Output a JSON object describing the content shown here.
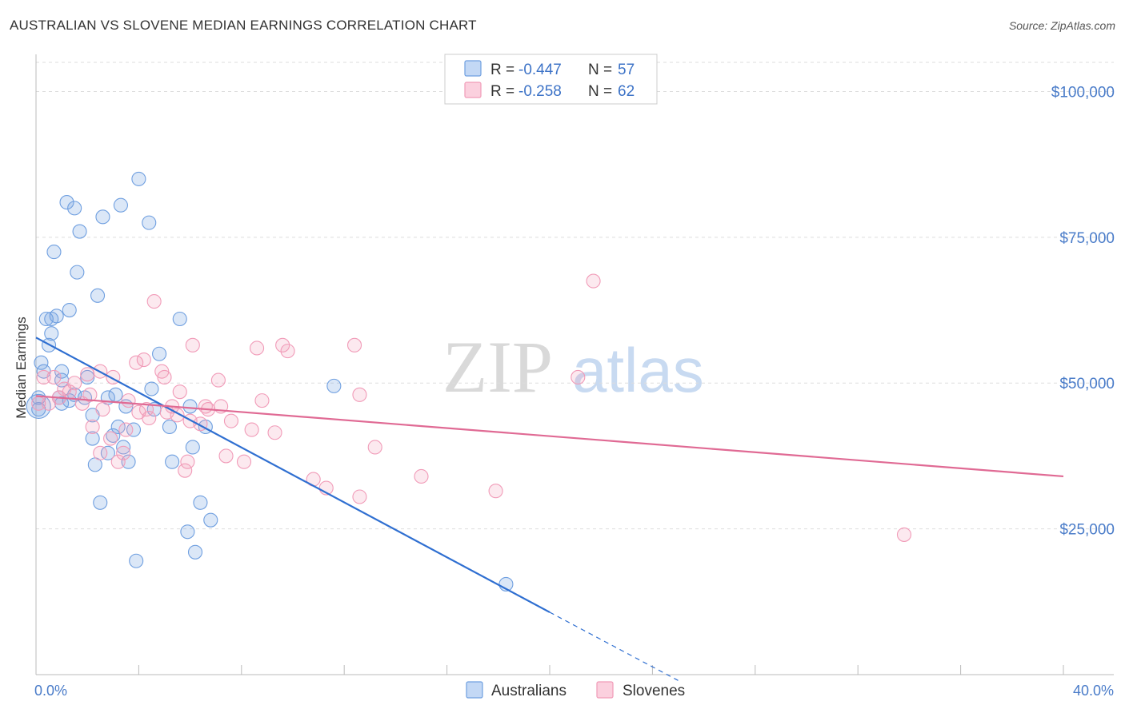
{
  "chart_data": {
    "type": "scatter",
    "title": "AUSTRALIAN VS SLOVENE MEDIAN EARNINGS CORRELATION CHART",
    "source": "Source: ZipAtlas.com",
    "ylabel": "Median Earnings",
    "xlabel": "",
    "xlim": [
      0,
      40
    ],
    "ylim": [
      0,
      105000
    ],
    "y_ticks": [
      25000,
      50000,
      75000,
      100000
    ],
    "y_tick_labels": [
      "$25,000",
      "$50,000",
      "$75,000",
      "$100,000"
    ],
    "x_tick_labels": [
      "0.0%",
      "40.0%"
    ],
    "watermark": {
      "zip": "ZIP",
      "atlas": "atlas"
    },
    "legend": [
      {
        "r_label": "R =",
        "r_value": "-0.447",
        "n_label": "N =",
        "n_value": "57"
      },
      {
        "r_label": "R =",
        "r_value": "-0.258",
        "n_label": "N =",
        "n_value": "62"
      }
    ],
    "series": [
      {
        "name": "Australians",
        "color": "#6f9fe0",
        "line_color": "#2f6fd1",
        "trend": {
          "x0": 0,
          "y0": 57800,
          "x1": 20,
          "y1": 10700,
          "dash_to_x": 25,
          "dash_to_y": -1000
        },
        "points": [
          [
            0.1,
            45500
          ],
          [
            0.1,
            47500
          ],
          [
            0.2,
            53500
          ],
          [
            0.3,
            52000
          ],
          [
            0.4,
            61000
          ],
          [
            0.5,
            56500
          ],
          [
            0.6,
            58500
          ],
          [
            0.6,
            61000
          ],
          [
            0.7,
            72500
          ],
          [
            0.8,
            61500
          ],
          [
            1.0,
            46500
          ],
          [
            1.0,
            50500
          ],
          [
            1.0,
            52000
          ],
          [
            1.2,
            81000
          ],
          [
            1.3,
            62500
          ],
          [
            1.5,
            80000
          ],
          [
            1.5,
            48000
          ],
          [
            1.6,
            69000
          ],
          [
            1.7,
            76000
          ],
          [
            1.9,
            47500
          ],
          [
            2.0,
            51000
          ],
          [
            2.2,
            44500
          ],
          [
            2.2,
            40500
          ],
          [
            2.3,
            36000
          ],
          [
            2.4,
            65000
          ],
          [
            2.5,
            29500
          ],
          [
            2.6,
            78500
          ],
          [
            2.8,
            47500
          ],
          [
            2.8,
            38000
          ],
          [
            3.0,
            41000
          ],
          [
            3.1,
            48000
          ],
          [
            3.2,
            42500
          ],
          [
            3.3,
            80500
          ],
          [
            3.4,
            39000
          ],
          [
            3.5,
            46000
          ],
          [
            3.6,
            36500
          ],
          [
            3.8,
            42000
          ],
          [
            3.9,
            19500
          ],
          [
            4.0,
            85000
          ],
          [
            4.4,
            77500
          ],
          [
            4.5,
            49000
          ],
          [
            4.6,
            45500
          ],
          [
            4.8,
            55000
          ],
          [
            5.2,
            42500
          ],
          [
            5.3,
            36500
          ],
          [
            5.6,
            61000
          ],
          [
            6.0,
            46000
          ],
          [
            6.1,
            39000
          ],
          [
            5.9,
            24500
          ],
          [
            6.2,
            21000
          ],
          [
            6.4,
            29500
          ],
          [
            6.6,
            42500
          ],
          [
            6.8,
            26500
          ],
          [
            11.6,
            49500
          ],
          [
            18.3,
            15500
          ],
          [
            1.3,
            47000
          ],
          [
            0.9,
            47500
          ]
        ]
      },
      {
        "name": "Slovenes",
        "color": "#f19bb8",
        "line_color": "#e06a94",
        "trend": {
          "x0": 0,
          "y0": 47800,
          "x1": 40,
          "y1": 34000
        },
        "points": [
          [
            0.1,
            46500
          ],
          [
            0.3,
            51000
          ],
          [
            0.5,
            46500
          ],
          [
            0.7,
            51000
          ],
          [
            0.9,
            47500
          ],
          [
            1.1,
            49000
          ],
          [
            1.3,
            48500
          ],
          [
            1.5,
            50000
          ],
          [
            1.8,
            46500
          ],
          [
            2.0,
            51500
          ],
          [
            2.1,
            48000
          ],
          [
            2.2,
            42500
          ],
          [
            2.5,
            38000
          ],
          [
            2.5,
            52000
          ],
          [
            2.6,
            45500
          ],
          [
            2.9,
            40500
          ],
          [
            3.0,
            51000
          ],
          [
            3.2,
            36500
          ],
          [
            3.4,
            38000
          ],
          [
            3.5,
            42000
          ],
          [
            3.6,
            47000
          ],
          [
            3.9,
            53500
          ],
          [
            4.0,
            45000
          ],
          [
            4.2,
            54000
          ],
          [
            4.3,
            45500
          ],
          [
            4.4,
            44000
          ],
          [
            4.6,
            64000
          ],
          [
            4.9,
            52000
          ],
          [
            5.0,
            51000
          ],
          [
            5.1,
            45000
          ],
          [
            5.3,
            46000
          ],
          [
            5.5,
            44500
          ],
          [
            5.6,
            48500
          ],
          [
            5.8,
            35000
          ],
          [
            5.9,
            36500
          ],
          [
            6.0,
            43500
          ],
          [
            6.1,
            56500
          ],
          [
            6.4,
            43000
          ],
          [
            6.6,
            46000
          ],
          [
            6.7,
            45500
          ],
          [
            7.1,
            50500
          ],
          [
            7.2,
            46000
          ],
          [
            7.4,
            37500
          ],
          [
            7.6,
            43500
          ],
          [
            8.1,
            36500
          ],
          [
            8.4,
            42000
          ],
          [
            8.6,
            56000
          ],
          [
            8.8,
            47000
          ],
          [
            9.3,
            41500
          ],
          [
            9.6,
            56500
          ],
          [
            9.8,
            55500
          ],
          [
            10.8,
            33500
          ],
          [
            11.3,
            32000
          ],
          [
            12.4,
            56500
          ],
          [
            12.6,
            48000
          ],
          [
            12.6,
            30500
          ],
          [
            13.2,
            39000
          ],
          [
            15.0,
            34000
          ],
          [
            17.9,
            31500
          ],
          [
            21.1,
            51000
          ],
          [
            21.7,
            67500
          ],
          [
            33.8,
            24000
          ]
        ]
      }
    ]
  }
}
